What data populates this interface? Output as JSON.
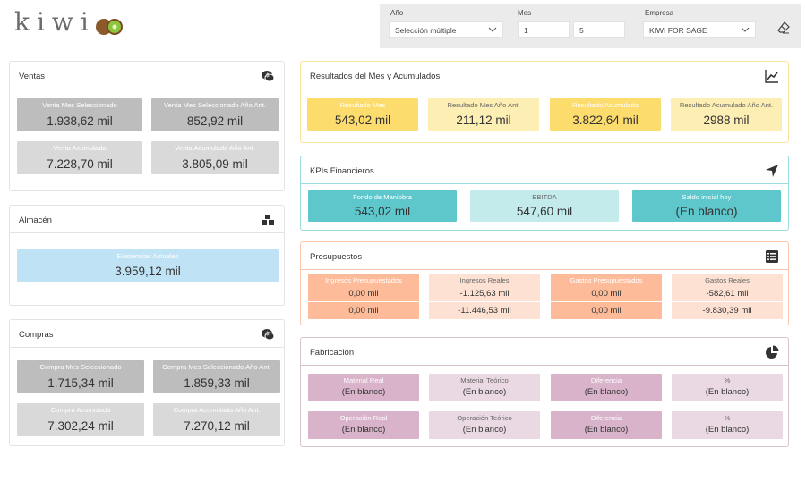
{
  "header": {
    "logo_text": "kiwi",
    "filters": {
      "anio": {
        "label": "Año",
        "value": "Selección múltiple"
      },
      "mes": {
        "label": "Mes",
        "from": "1",
        "to": "5"
      },
      "empresa": {
        "label": "Empresa",
        "value": "KIWI FOR SAGE"
      }
    }
  },
  "ventas": {
    "title": "Ventas",
    "cards": [
      {
        "label": "Venta Mes Seleccionado",
        "value": "1.938,62 mil"
      },
      {
        "label": "Venta Mes Seleccionado Año Ant.",
        "value": "852,92 mil"
      },
      {
        "label": "Venta Acumulada",
        "value": "7.228,70 mil"
      },
      {
        "label": "Venta Acumulada Año Ant.",
        "value": "3.805,09 mil"
      }
    ]
  },
  "almacen": {
    "title": "Almacén",
    "card": {
      "label": "Existencias Actuales",
      "value": "3.959,12 mil"
    }
  },
  "compras": {
    "title": "Compras",
    "cards": [
      {
        "label": "Compra Mes Seleccionado",
        "value": "1.715,34 mil"
      },
      {
        "label": "Compra Mes Seleccionado Año Ant.",
        "value": "1.859,33 mil"
      },
      {
        "label": "Compra Acumulada",
        "value": "7.302,24 mil"
      },
      {
        "label": "Compra Acumulada Año Ant.",
        "value": "7.270,12 mil"
      }
    ]
  },
  "resultados": {
    "title": "Resultados del Mes y Acumulados",
    "cards": [
      {
        "label": "Resultado Mes",
        "value": "543,02 mil"
      },
      {
        "label": "Resultado Mes Año Ant.",
        "value": "211,12 mil"
      },
      {
        "label": "Resultado Acumulado",
        "value": "3.822,64 mil"
      },
      {
        "label": "Resultado Acumulado Año Ant.",
        "value": "2988 mil"
      }
    ]
  },
  "kpis": {
    "title": "KPIs Financieros",
    "cards": [
      {
        "label": "Fondo de Maniobra",
        "value": "543,02 mil"
      },
      {
        "label": "EBITDA",
        "value": "547,60 mil"
      },
      {
        "label": "Saldo inicial hoy",
        "value": "(En blanco)"
      }
    ]
  },
  "presupuestos": {
    "title": "Presupuestos",
    "cards": [
      {
        "label": "Ingresos Presupuestados",
        "v1": "0,00 mil",
        "v2": "0,00 mil"
      },
      {
        "label": "Ingresos Reales",
        "v1": "-1.125,63 mil",
        "v2": "-11.446,53 mil"
      },
      {
        "label": "Gastos Presupuestados",
        "v1": "0,00 mil",
        "v2": "0,00 mil"
      },
      {
        "label": "Gastos Reales",
        "v1": "-582,61 mil",
        "v2": "-9.830,39 mil"
      }
    ]
  },
  "fabricacion": {
    "title": "Fabricación",
    "row1": [
      {
        "label": "Material Real",
        "value": "(En blanco)"
      },
      {
        "label": "Material Teórico",
        "value": "(En blanco)"
      },
      {
        "label": "Diferencia",
        "value": "(En blanco)"
      },
      {
        "label": "%",
        "value": "(En blanco)"
      }
    ],
    "row2": [
      {
        "label": "Operación Real",
        "value": "(En blanco)"
      },
      {
        "label": "Operación Teórico",
        "value": "(En blanco)"
      },
      {
        "label": "Diferencia",
        "value": "(En blanco)"
      },
      {
        "label": "%",
        "value": "(En blanco)"
      }
    ]
  }
}
